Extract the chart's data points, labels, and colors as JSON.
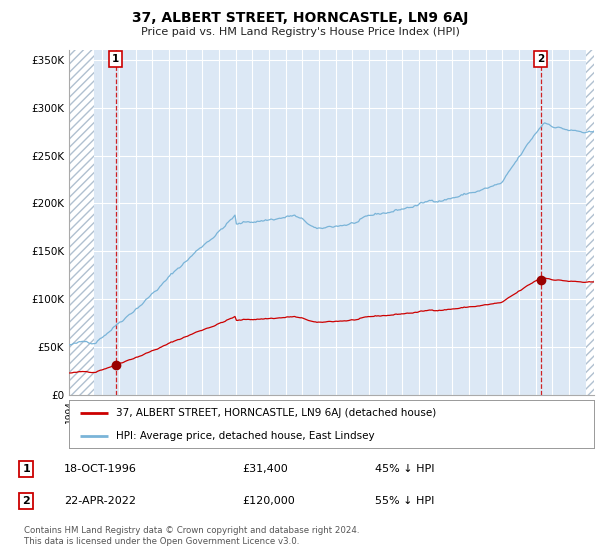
{
  "title": "37, ALBERT STREET, HORNCASTLE, LN9 6AJ",
  "subtitle": "Price paid vs. HM Land Registry's House Price Index (HPI)",
  "legend_line1": "37, ALBERT STREET, HORNCASTLE, LN9 6AJ (detached house)",
  "legend_line2": "HPI: Average price, detached house, East Lindsey",
  "transaction1_date": "18-OCT-1996",
  "transaction1_price": "£31,400",
  "transaction1_hpi": "45% ↓ HPI",
  "transaction2_date": "22-APR-2022",
  "transaction2_price": "£120,000",
  "transaction2_hpi": "55% ↓ HPI",
  "footer": "Contains HM Land Registry data © Crown copyright and database right 2024.\nThis data is licensed under the Open Government Licence v3.0.",
  "hpi_color": "#7ab4d8",
  "property_color": "#cc0000",
  "marker_color": "#990000",
  "vline_color": "#cc0000",
  "plot_bg": "#dce8f5",
  "grid_color": "#ffffff",
  "yticks": [
    0,
    50000,
    100000,
    150000,
    200000,
    250000,
    300000,
    350000
  ],
  "ytick_labels": [
    "£0",
    "£50K",
    "£100K",
    "£150K",
    "£200K",
    "£250K",
    "£300K",
    "£350K"
  ],
  "transaction1_year": 1996.8,
  "transaction2_year": 2022.3,
  "transaction1_price_val": 31400,
  "transaction2_price_val": 120000,
  "xlim_start": 1994.0,
  "xlim_end": 2025.5,
  "ylim_top": 360000
}
